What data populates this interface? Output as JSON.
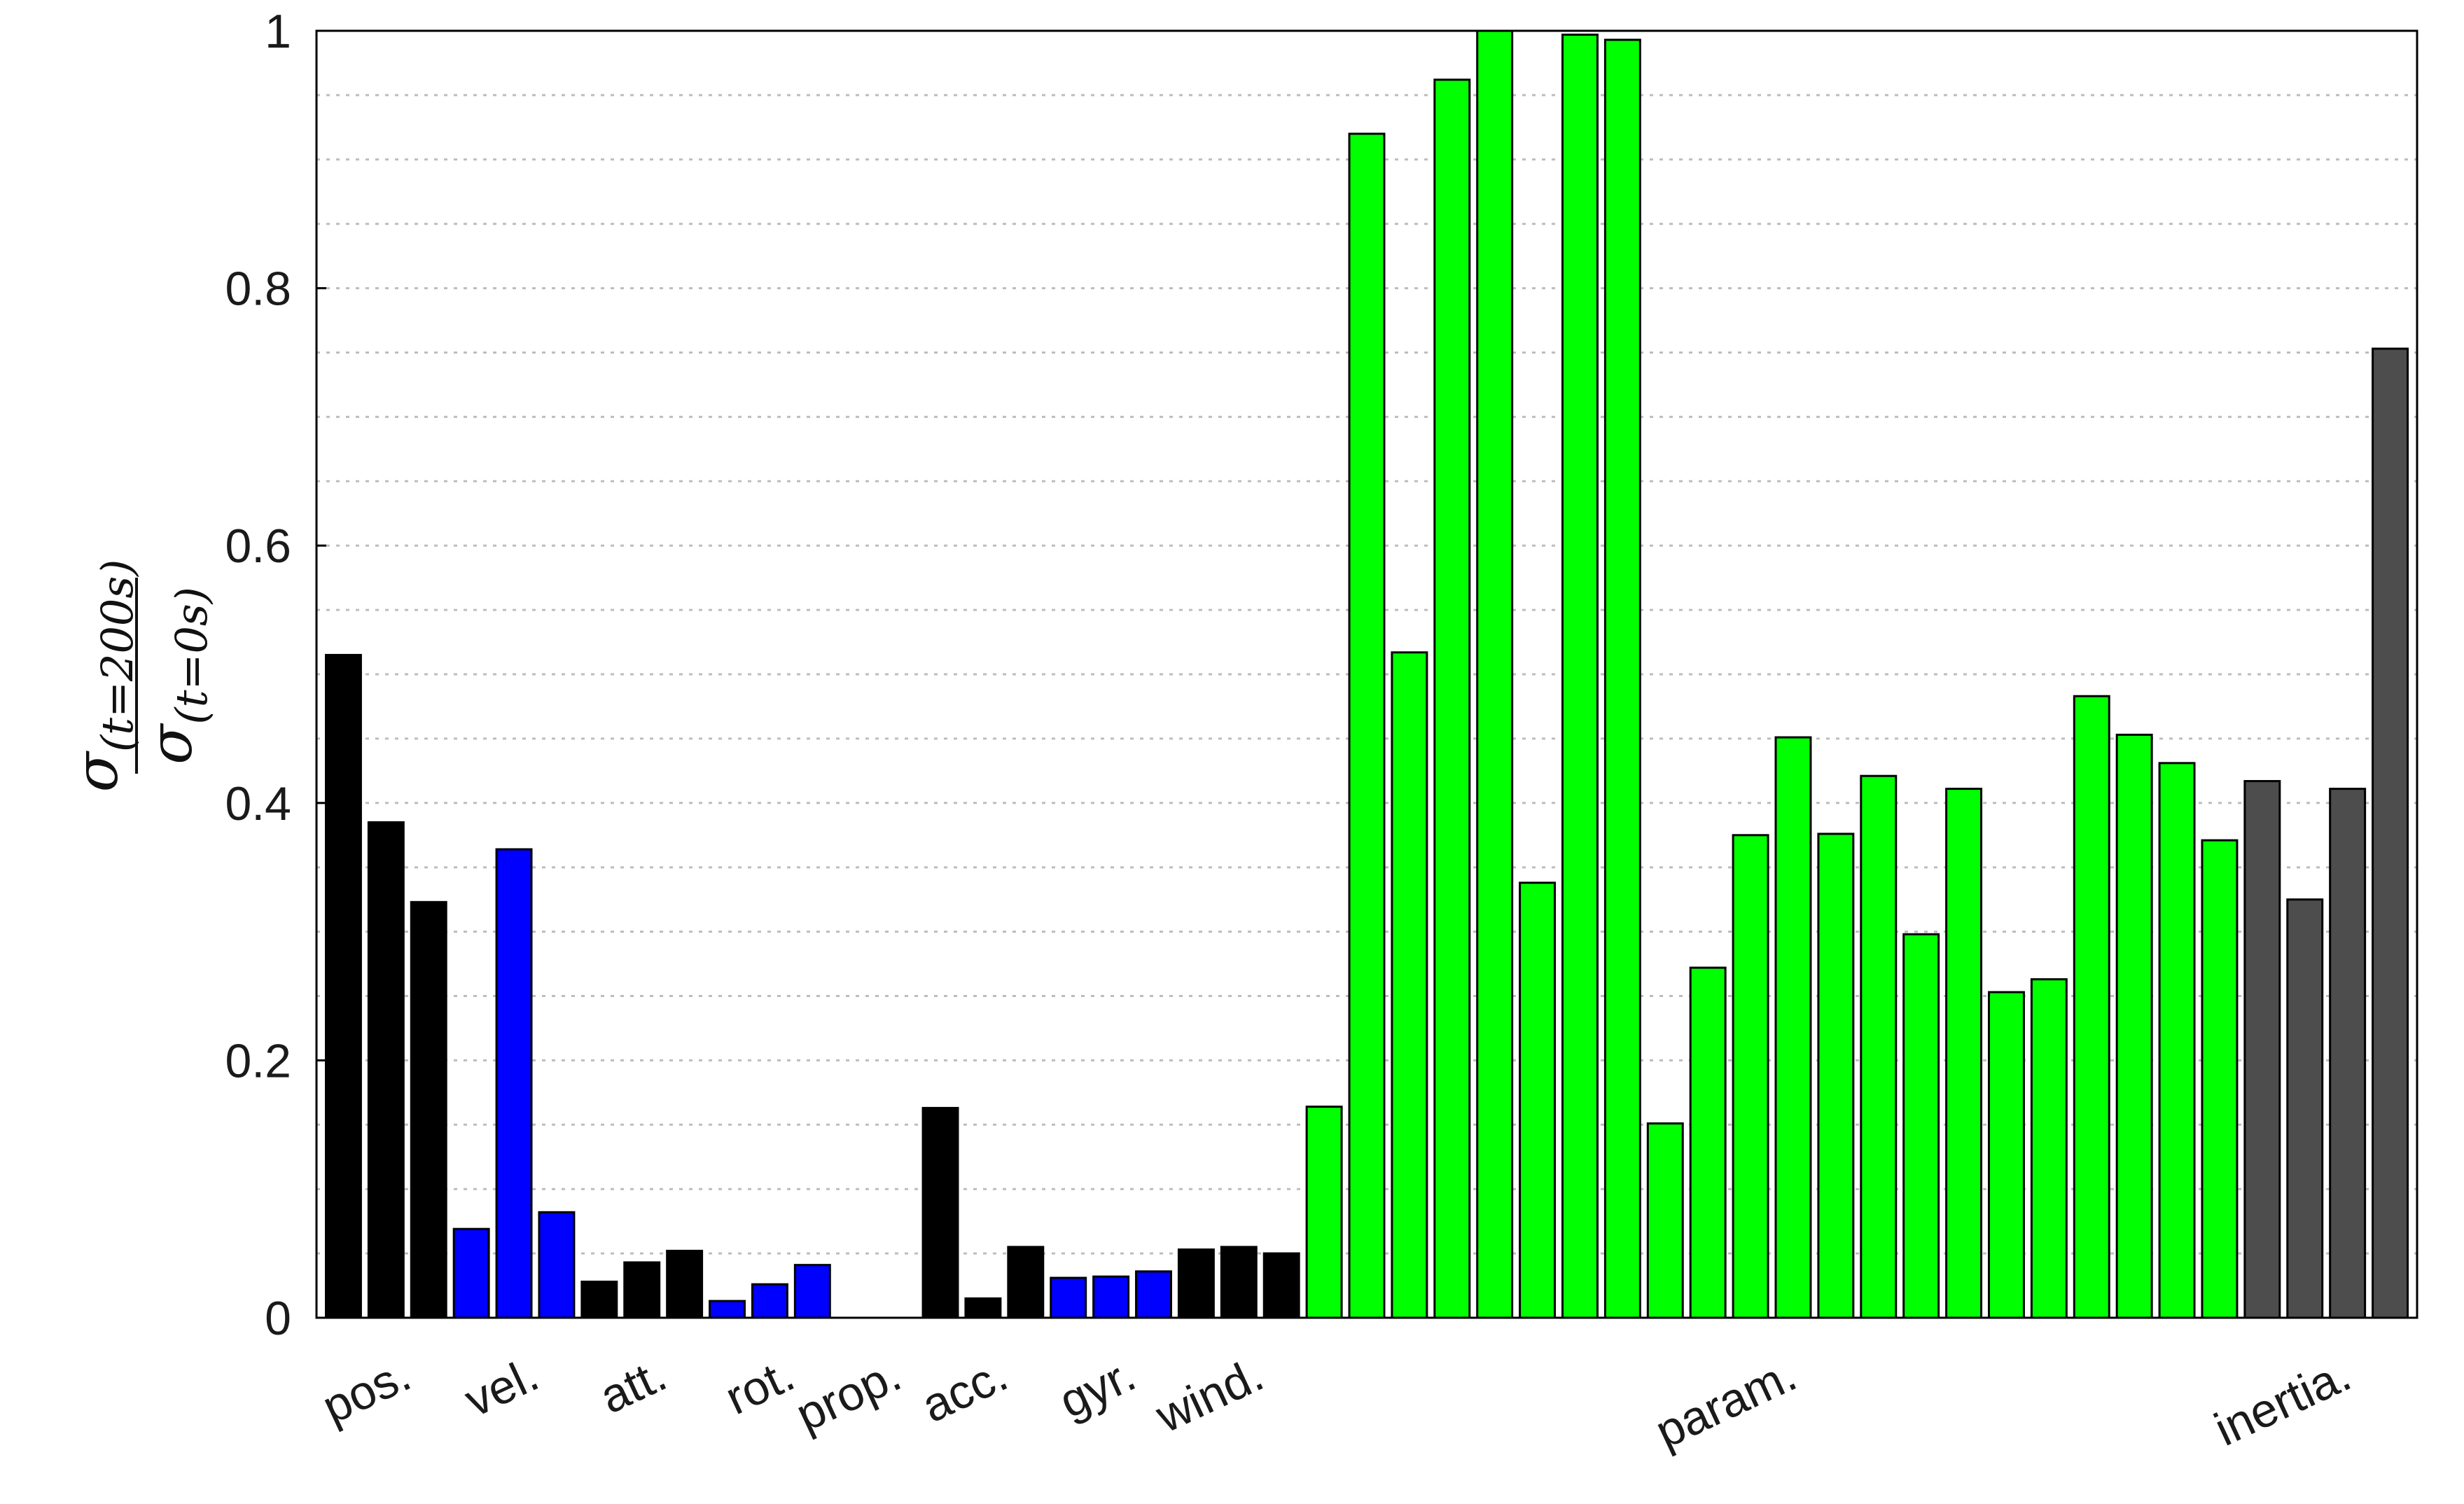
{
  "chart_data": {
    "type": "bar",
    "title": "",
    "xlabel": "",
    "ylabel": {
      "numerator_symbol": "σ",
      "numerator_subscript": "(t=200s)",
      "denominator_symbol": "σ",
      "denominator_subscript": "(t=0s)"
    },
    "ylim": [
      0,
      1.0
    ],
    "yticks": [
      {
        "value": 0,
        "label": "0"
      },
      {
        "value": 0.2,
        "label": "0.2"
      },
      {
        "value": 0.4,
        "label": "0.4"
      },
      {
        "value": 0.6,
        "label": "0.6"
      },
      {
        "value": 0.8,
        "label": "0.8"
      },
      {
        "value": 1.0,
        "label": "1"
      }
    ],
    "grid": {
      "y_major": true,
      "y_minor_step": 0.05,
      "style": "dotted"
    },
    "colors": {
      "black": "#000000",
      "blue": "#0000ff",
      "green": "#00ff00",
      "gray": "#4d4d4d",
      "bar_edge": "#000000",
      "grid": "#bdbdbd"
    },
    "values": [
      0.515,
      0.385,
      0.323,
      0.069,
      0.364,
      0.082,
      0.028,
      0.043,
      0.052,
      0.013,
      0.026,
      0.041,
      0.0,
      0.0,
      0.163,
      0.015,
      0.055,
      0.031,
      0.032,
      0.036,
      0.053,
      0.055,
      0.05,
      0.164,
      0.92,
      0.517,
      0.962,
      1.0,
      0.338,
      0.997,
      0.993,
      0.151,
      0.272,
      0.375,
      0.451,
      0.376,
      0.421,
      0.298,
      0.411,
      0.253,
      0.263,
      0.483,
      0.453,
      0.431,
      0.371,
      0.417,
      0.325,
      0.411,
      0.753
    ],
    "bar_colors": [
      "black",
      "black",
      "black",
      "blue",
      "blue",
      "blue",
      "black",
      "black",
      "black",
      "blue",
      "blue",
      "blue",
      "black",
      "black",
      "black",
      "black",
      "black",
      "blue",
      "blue",
      "blue",
      "black",
      "black",
      "black",
      "green",
      "green",
      "green",
      "green",
      "green",
      "green",
      "green",
      "green",
      "green",
      "green",
      "green",
      "green",
      "green",
      "green",
      "green",
      "green",
      "green",
      "green",
      "green",
      "green",
      "green",
      "green",
      "gray",
      "gray",
      "gray",
      "gray"
    ],
    "groups": [
      {
        "label": "pos.",
        "start": 0,
        "end": 2
      },
      {
        "label": "vel.",
        "start": 3,
        "end": 5
      },
      {
        "label": "att.",
        "start": 6,
        "end": 8
      },
      {
        "label": "rot.",
        "start": 9,
        "end": 11
      },
      {
        "label": "prop.",
        "start": 12,
        "end": 13
      },
      {
        "label": "acc.",
        "start": 14,
        "end": 16
      },
      {
        "label": "gyr.",
        "start": 17,
        "end": 19
      },
      {
        "label": "wind.",
        "start": 20,
        "end": 22
      },
      {
        "label": "param.",
        "start": 23,
        "end": 44
      },
      {
        "label": "inertia.",
        "start": 45,
        "end": 48
      }
    ],
    "legend": null
  }
}
